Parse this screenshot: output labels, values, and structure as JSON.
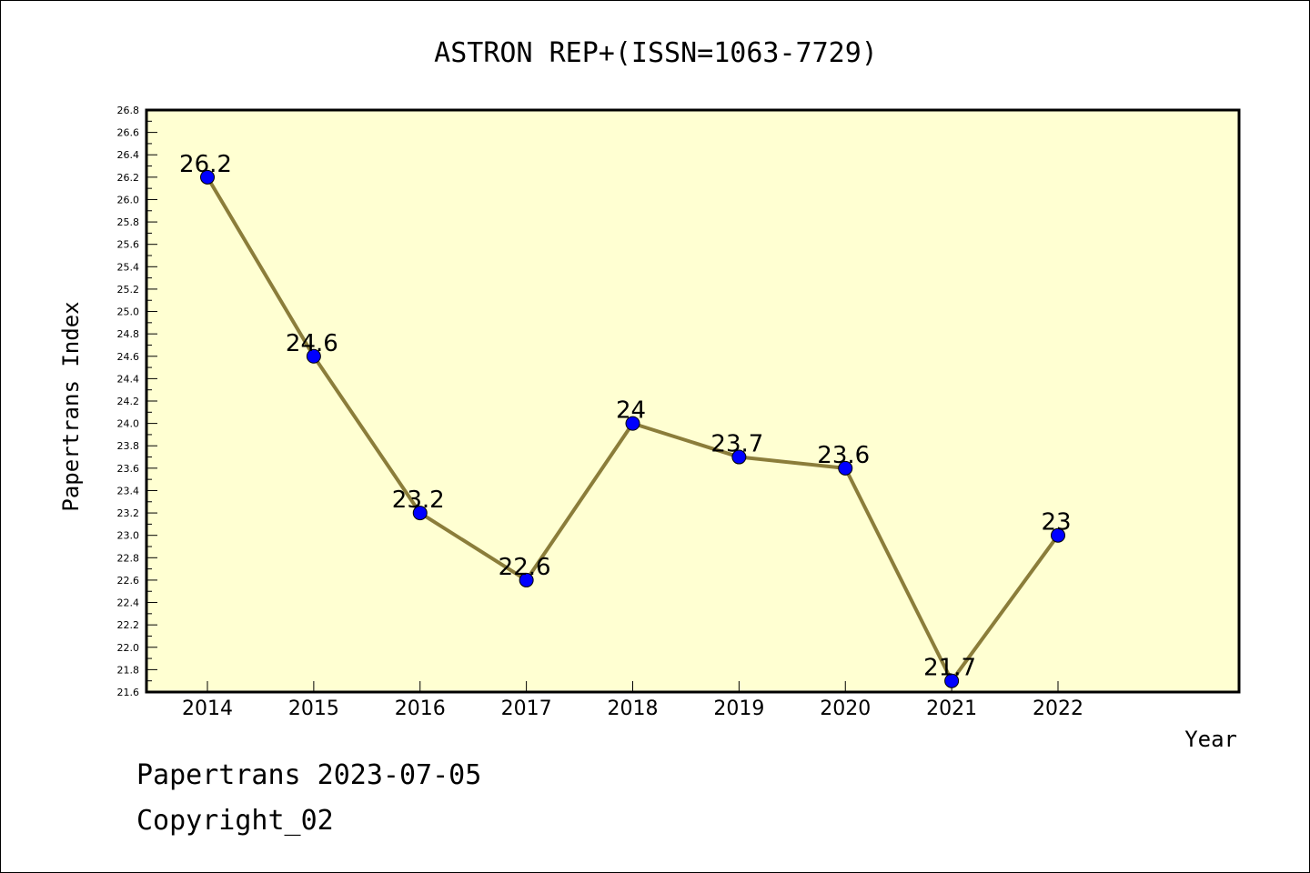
{
  "chart_data": {
    "type": "line",
    "title": "ASTRON REP+(ISSN=1063-7729)",
    "xlabel": "Year",
    "ylabel": "Papertrans Index",
    "categories": [
      "2014",
      "2015",
      "2016",
      "2017",
      "2018",
      "2019",
      "2020",
      "2021",
      "2022"
    ],
    "series": [
      {
        "values": [
          26.2,
          24.6,
          23.2,
          22.6,
          24.0,
          23.7,
          23.6,
          21.7,
          23.0
        ],
        "labels": [
          "26.2",
          "24.6",
          "23.2",
          "22.6",
          "24",
          "23.7",
          "23.6",
          "21.7",
          "23"
        ],
        "line_color": "#8b7d3a",
        "marker_color": "#0000ff"
      }
    ],
    "ylim": [
      21.6,
      26.8
    ],
    "ytick_step": 0.2,
    "plot_background": "#ffffd2",
    "grid": false
  },
  "footer": {
    "date_text": "Papertrans 2023-07-05",
    "copyright": "Copyright_02"
  }
}
